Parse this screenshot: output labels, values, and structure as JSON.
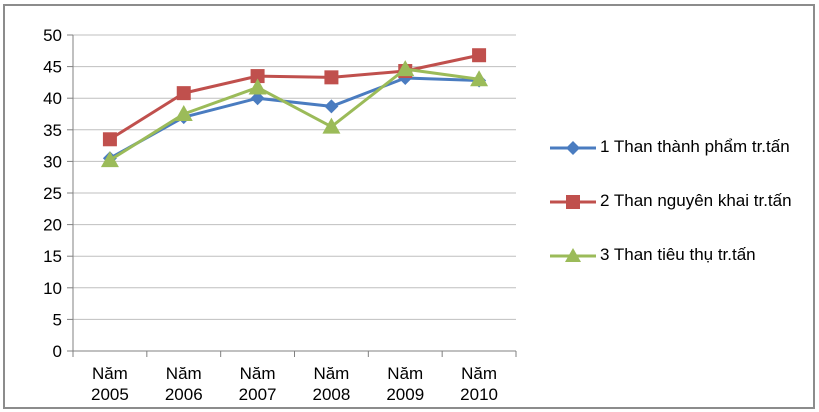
{
  "chart_data": {
    "type": "line",
    "categories": [
      "Năm 2005",
      "Năm 2006",
      "Năm 2007",
      "Năm 2008",
      "Năm 2009",
      "Năm 2010"
    ],
    "category_lines": [
      [
        "Năm",
        "2005"
      ],
      [
        "Năm",
        "2006"
      ],
      [
        "Năm",
        "2007"
      ],
      [
        "Năm",
        "2008"
      ],
      [
        "Năm",
        "2009"
      ],
      [
        "Năm",
        "2010"
      ]
    ],
    "ylim": [
      0,
      50
    ],
    "y_ticks": [
      "0",
      "5",
      "10",
      "15",
      "20",
      "25",
      "30",
      "35",
      "40",
      "45",
      "50"
    ],
    "grid": true,
    "legend_position": "right",
    "series": [
      {
        "name": "1 Than thành phẩm tr.tấn",
        "color": "#4a7cc0",
        "marker": "diamond",
        "values": [
          30.5,
          37,
          40,
          38.7,
          43.2,
          42.8
        ]
      },
      {
        "name": "2 Than nguyên khai tr.tấn",
        "color": "#c0504d",
        "marker": "square",
        "values": [
          33.5,
          40.8,
          43.5,
          43.3,
          44.3,
          46.8
        ]
      },
      {
        "name": "3 Than tiêu thụ tr.tấn",
        "color": "#9bbb59",
        "marker": "triangle",
        "values": [
          30.2,
          37.5,
          41.7,
          35.5,
          44.6,
          43
        ]
      }
    ]
  }
}
